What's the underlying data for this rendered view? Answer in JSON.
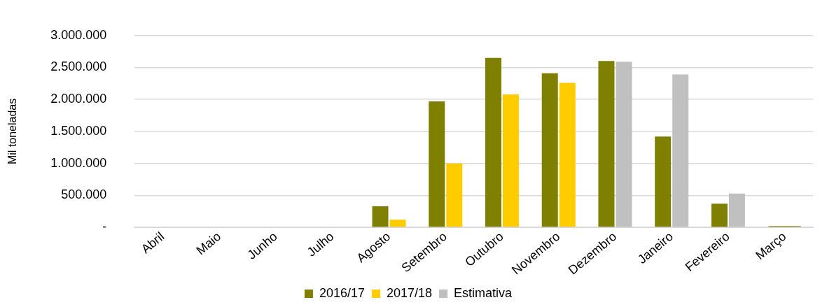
{
  "chart_data": {
    "type": "bar",
    "ylabel": "Mil toneladas",
    "categories": [
      "Abril",
      "Maio",
      "Junho",
      "Julho",
      "Agosto",
      "Setembro",
      "Outubro",
      "Novembro",
      "Dezembro",
      "Janeiro",
      "Fevereiro",
      "Março"
    ],
    "series": [
      {
        "name": "2016/17",
        "color": "#808000",
        "values": [
          null,
          null,
          null,
          null,
          330000,
          1970000,
          2650000,
          2410000,
          2600000,
          1420000,
          370000,
          20000
        ]
      },
      {
        "name": "2017/18",
        "color": "#ffcc00",
        "values": [
          null,
          null,
          null,
          null,
          120000,
          1000000,
          2080000,
          2260000,
          null,
          null,
          null,
          null
        ]
      },
      {
        "name": "Estimativa",
        "color": "#c0c0c0",
        "values": [
          null,
          null,
          null,
          null,
          null,
          null,
          null,
          null,
          2590000,
          2390000,
          530000,
          null
        ]
      }
    ],
    "ylim": [
      0,
      3000000
    ],
    "yticks": [
      {
        "value": 0,
        "label": "-"
      },
      {
        "value": 500000,
        "label": "500.000"
      },
      {
        "value": 1000000,
        "label": "1.000.000"
      },
      {
        "value": 1500000,
        "label": "1.500.000"
      },
      {
        "value": 2000000,
        "label": "2.000.000"
      },
      {
        "value": 2500000,
        "label": "2.500.000"
      },
      {
        "value": 3000000,
        "label": "3.000.000"
      }
    ],
    "grid": "y",
    "legend": "bottom"
  }
}
